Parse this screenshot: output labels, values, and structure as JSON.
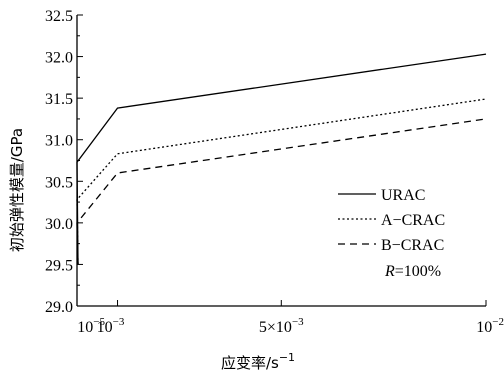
{
  "chart_data": {
    "type": "line",
    "title": "",
    "xlabel": "应变率/s",
    "xlabel_exponent": "−1",
    "ylabel": "初始弹性模量/GPa",
    "xlim": [
      1e-05,
      0.01
    ],
    "ylim": [
      29.0,
      32.5
    ],
    "x": [
      1e-05,
      0.001,
      0.01
    ],
    "x_ticks": [
      {
        "value": 1e-05,
        "base": "10",
        "exp": "−5"
      },
      {
        "value": 0.001,
        "base": "10",
        "exp": "−3"
      },
      {
        "value": 0.005,
        "base": "5×10",
        "exp": "−3"
      },
      {
        "value": 0.01,
        "base": "10",
        "exp": "−2"
      }
    ],
    "y_ticks": [
      "29.0",
      "29.5",
      "30.0",
      "30.5",
      "31.0",
      "31.5",
      "32.0",
      "32.5"
    ],
    "series": [
      {
        "name": "URAC",
        "style": "solid",
        "values": [
          30.73,
          31.38,
          32.03
        ]
      },
      {
        "name": "A−CRAC",
        "style": "dotted",
        "values": [
          30.28,
          30.83,
          31.49
        ]
      },
      {
        "name": "B−CRAC",
        "style": "dashed",
        "values": [
          30.0,
          30.6,
          31.25
        ]
      }
    ],
    "legend_note": {
      "italic": "R",
      "rest": "=100%"
    },
    "legend_position": "right",
    "grid": false
  }
}
